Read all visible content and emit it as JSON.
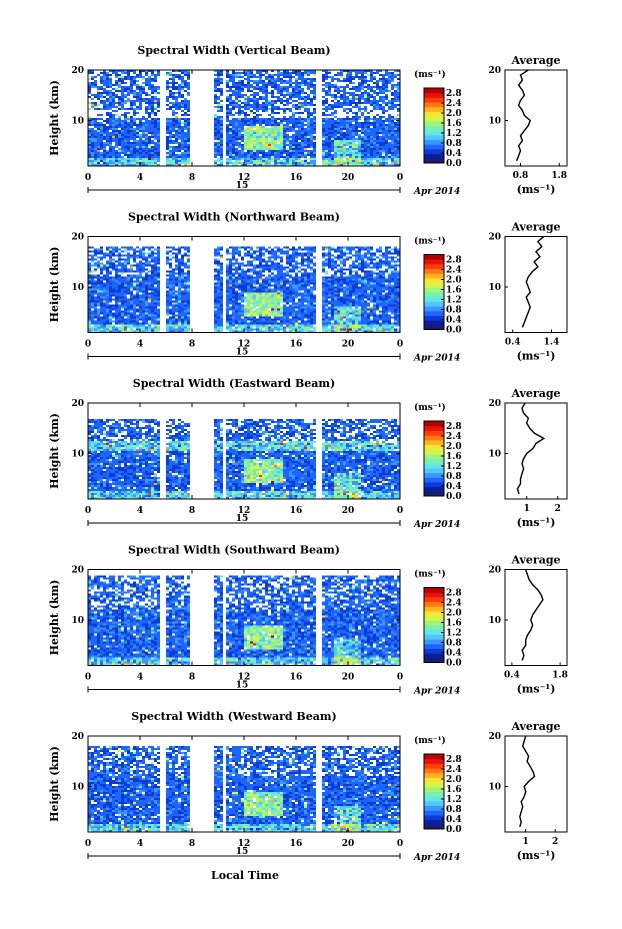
{
  "figure": {
    "common_xlabel": "Local Time",
    "day_label": "15",
    "date_label": "Apr 2014",
    "unit_label": "(ms⁻¹)",
    "avg_title": "Average",
    "colormap": [
      "#1c1c6e",
      "#0a1e9c",
      "#0a3cd2",
      "#1e64ff",
      "#3c96ff",
      "#50c8ff",
      "#64e6e6",
      "#78f0b4",
      "#a0f578",
      "#d2f550",
      "#fae632",
      "#ffb41e",
      "#ff7814",
      "#ff3c0a",
      "#e6140a",
      "#b40000"
    ]
  },
  "chart_data": [
    {
      "type": "heatmap",
      "title": "Spectral Width (Vertical Beam)",
      "xlabel": "",
      "ylabel": "Height (km)",
      "xlim": [
        0,
        24
      ],
      "ylim": [
        1,
        20
      ],
      "xticks": [
        "0",
        "4",
        "8",
        "12",
        "16",
        "20",
        "0"
      ],
      "yticks": [
        "10",
        "20"
      ],
      "colorbar": {
        "min": 0.0,
        "max": 3.0,
        "ticks": [
          "0.0",
          "0.4",
          "0.8",
          "1.2",
          "1.6",
          "2.0",
          "2.4",
          "2.8"
        ]
      },
      "data_gaps_hours": [
        [
          5.5,
          5.9
        ],
        [
          7.8,
          9.6
        ],
        [
          10.3,
          10.6
        ],
        [
          17.6,
          17.9
        ]
      ],
      "top_height_km": 20,
      "average": {
        "xlabel": "(ms⁻¹)",
        "xticks": [
          "0.8",
          "1.8"
        ],
        "xlim": [
          0.4,
          2.0
        ],
        "heights_km": [
          2,
          3,
          4,
          5,
          6,
          7,
          8,
          9,
          10,
          11,
          12,
          13,
          14,
          15,
          16,
          17,
          18,
          19,
          20
        ],
        "values": [
          0.7,
          0.75,
          0.8,
          0.75,
          0.85,
          0.8,
          0.9,
          1.0,
          1.05,
          0.9,
          0.85,
          0.75,
          0.8,
          0.9,
          0.85,
          0.75,
          0.85,
          0.8,
          1.0
        ]
      }
    },
    {
      "type": "heatmap",
      "title": "Spectral Width (Northward Beam)",
      "xlabel": "",
      "ylabel": "Height (km)",
      "xlim": [
        0,
        24
      ],
      "ylim": [
        1,
        20
      ],
      "xticks": [
        "0",
        "4",
        "8",
        "12",
        "16",
        "20",
        "0"
      ],
      "yticks": [
        "10",
        "20"
      ],
      "colorbar": {
        "min": 0.0,
        "max": 3.0,
        "ticks": [
          "0.0",
          "0.4",
          "0.8",
          "1.2",
          "1.6",
          "2.0",
          "2.4",
          "2.8"
        ]
      },
      "data_gaps_hours": [
        [
          5.5,
          5.9
        ],
        [
          7.8,
          9.6
        ],
        [
          10.3,
          10.6
        ],
        [
          17.6,
          17.9
        ]
      ],
      "top_height_km": 18,
      "average": {
        "xlabel": "(ms⁻¹)",
        "xticks": [
          "0.4",
          "1.4"
        ],
        "xlim": [
          0.2,
          1.8
        ],
        "heights_km": [
          2,
          3,
          4,
          5,
          6,
          7,
          8,
          9,
          10,
          11,
          12,
          13,
          14,
          15,
          16,
          17,
          18,
          19,
          20
        ],
        "values": [
          0.65,
          0.7,
          0.75,
          0.8,
          0.85,
          0.8,
          0.75,
          0.85,
          0.8,
          0.75,
          0.8,
          0.9,
          1.05,
          0.95,
          1.1,
          1.0,
          1.15,
          1.05,
          1.2
        ]
      }
    },
    {
      "type": "heatmap",
      "title": "Spectral Width (Eastward Beam)",
      "xlabel": "",
      "ylabel": "Height (km)",
      "xlim": [
        0,
        24
      ],
      "ylim": [
        1,
        20
      ],
      "xticks": [
        "0",
        "4",
        "8",
        "12",
        "16",
        "20",
        "0"
      ],
      "yticks": [
        "10",
        "20"
      ],
      "colorbar": {
        "min": 0.0,
        "max": 3.0,
        "ticks": [
          "0.0",
          "0.4",
          "0.8",
          "1.2",
          "1.6",
          "2.0",
          "2.4",
          "2.8"
        ]
      },
      "data_gaps_hours": [
        [
          5.5,
          5.9
        ],
        [
          7.8,
          9.6
        ],
        [
          10.3,
          10.6
        ],
        [
          17.6,
          17.9
        ]
      ],
      "top_height_km": 17,
      "average": {
        "xlabel": "(ms⁻¹)",
        "xticks": [
          "1",
          "2"
        ],
        "xlim": [
          0.3,
          2.3
        ],
        "heights_km": [
          2,
          3,
          4,
          5,
          6,
          7,
          8,
          9,
          10,
          11,
          12,
          13,
          14,
          15,
          16,
          17,
          18,
          19,
          20
        ],
        "values": [
          0.75,
          0.7,
          0.8,
          0.8,
          0.85,
          0.9,
          0.85,
          0.9,
          1.0,
          1.2,
          1.3,
          1.55,
          1.25,
          1.1,
          1.0,
          1.05,
          0.9,
          0.85,
          0.95
        ]
      }
    },
    {
      "type": "heatmap",
      "title": "Spectral Width (Southward Beam)",
      "xlabel": "",
      "ylabel": "Height (km)",
      "xlim": [
        0,
        24
      ],
      "ylim": [
        1,
        20
      ],
      "xticks": [
        "0",
        "4",
        "8",
        "12",
        "16",
        "20",
        "0"
      ],
      "yticks": [
        "10",
        "20"
      ],
      "colorbar": {
        "min": 0.0,
        "max": 3.0,
        "ticks": [
          "0.0",
          "0.4",
          "0.8",
          "1.2",
          "1.6",
          "2.0",
          "2.4",
          "2.8"
        ]
      },
      "data_gaps_hours": [
        [
          5.5,
          5.9
        ],
        [
          7.8,
          9.6
        ],
        [
          10.3,
          10.6
        ],
        [
          17.6,
          17.9
        ]
      ],
      "top_height_km": 19,
      "average": {
        "xlabel": "(ms⁻¹)",
        "xticks": [
          "0.4",
          "1.8"
        ],
        "xlim": [
          0.2,
          2.0
        ],
        "heights_km": [
          2,
          3,
          4,
          5,
          6,
          7,
          8,
          9,
          10,
          11,
          12,
          13,
          14,
          15,
          16,
          17,
          18,
          19,
          20
        ],
        "values": [
          0.7,
          0.75,
          0.7,
          0.8,
          0.8,
          0.85,
          0.95,
          1.0,
          0.95,
          1.0,
          1.1,
          1.2,
          1.3,
          1.25,
          1.15,
          1.0,
          0.9,
          0.85,
          0.8
        ]
      }
    },
    {
      "type": "heatmap",
      "title": "Spectral Width (Westward Beam)",
      "xlabel": "",
      "ylabel": "Height (km)",
      "xlim": [
        0,
        24
      ],
      "ylim": [
        1,
        20
      ],
      "xticks": [
        "0",
        "4",
        "8",
        "12",
        "16",
        "20",
        "0"
      ],
      "yticks": [
        "10",
        "20"
      ],
      "colorbar": {
        "min": 0.0,
        "max": 3.0,
        "ticks": [
          "0.0",
          "0.4",
          "0.8",
          "1.2",
          "1.6",
          "2.0",
          "2.4",
          "2.8"
        ]
      },
      "data_gaps_hours": [
        [
          5.5,
          5.9
        ],
        [
          7.8,
          9.6
        ],
        [
          10.3,
          10.6
        ],
        [
          17.6,
          17.9
        ]
      ],
      "top_height_km": 18,
      "average": {
        "xlabel": "(ms⁻¹)",
        "xticks": [
          "1",
          "2"
        ],
        "xlim": [
          0.3,
          2.4
        ],
        "heights_km": [
          2,
          3,
          4,
          5,
          6,
          7,
          8,
          9,
          10,
          11,
          12,
          13,
          14,
          15,
          16,
          17,
          18,
          19,
          20
        ],
        "values": [
          0.8,
          0.85,
          0.8,
          0.85,
          0.9,
          0.85,
          0.95,
          1.0,
          0.95,
          1.1,
          1.3,
          1.25,
          1.15,
          1.05,
          1.1,
          1.0,
          0.9,
          0.95,
          1.0
        ]
      }
    }
  ]
}
